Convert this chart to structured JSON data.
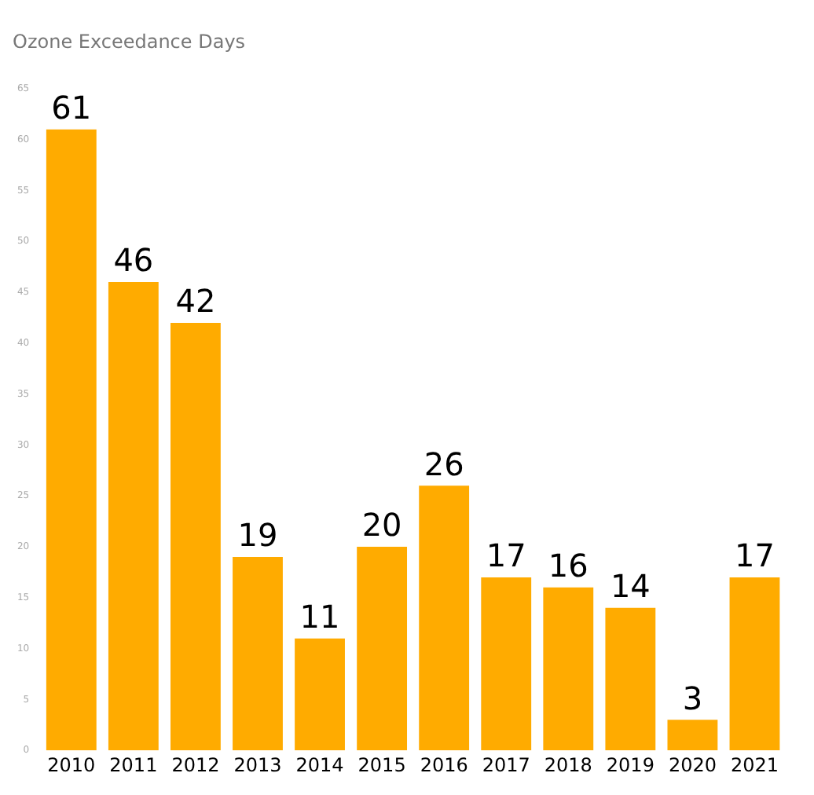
{
  "chart_data": {
    "type": "bar",
    "title": "Ozone Exceedance Days",
    "categories": [
      "2010",
      "2011",
      "2012",
      "2013",
      "2014",
      "2015",
      "2016",
      "2017",
      "2018",
      "2019",
      "2020",
      "2021"
    ],
    "values": [
      61,
      46,
      42,
      19,
      11,
      20,
      26,
      17,
      16,
      14,
      3,
      17
    ],
    "color": "#ffab00",
    "ylim": [
      0,
      65
    ],
    "yticks": [
      0,
      5,
      10,
      15,
      20,
      25,
      30,
      35,
      40,
      45,
      50,
      55,
      60,
      65
    ],
    "grid": false,
    "legend": false,
    "data_labels": true
  }
}
